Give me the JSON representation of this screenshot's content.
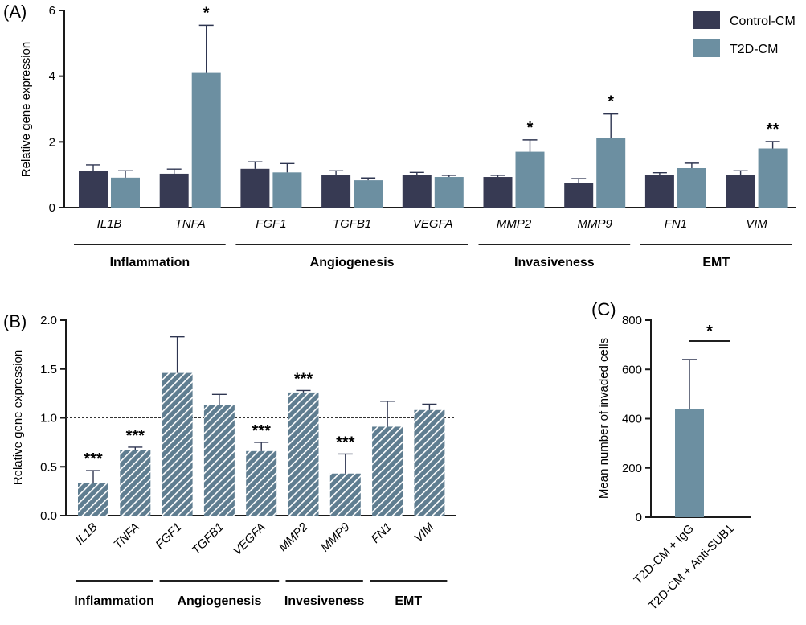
{
  "colors": {
    "control": "#373a53",
    "t2d": "#6c8fa1",
    "stripe": "#ffffff"
  },
  "legend": {
    "control": "Control-CM",
    "t2d": "T2D-CM"
  },
  "panels": {
    "a": "(A)",
    "b": "(B)",
    "c": "(C)"
  },
  "chart_data": [
    {
      "id": "A",
      "type": "bar",
      "ylabel": "Relative gene expression",
      "ylim": [
        0,
        6
      ],
      "yticks": [
        "0",
        "2",
        "4",
        "6"
      ],
      "categories": [
        "IL1B",
        "TNFA",
        "FGF1",
        "TGFB1",
        "VEGFA",
        "MMP2",
        "MMP9",
        "FN1",
        "VIM"
      ],
      "series": [
        {
          "name": "Control-CM",
          "values": [
            1.12,
            1.03,
            1.18,
            1.0,
            0.99,
            0.93,
            0.74,
            0.98,
            1.0
          ],
          "errors": [
            0.18,
            0.14,
            0.21,
            0.12,
            0.08,
            0.05,
            0.14,
            0.08,
            0.12
          ]
        },
        {
          "name": "T2D-CM",
          "values": [
            0.91,
            4.1,
            1.07,
            0.83,
            0.93,
            1.7,
            2.11,
            1.2,
            1.8
          ],
          "errors": [
            0.21,
            1.45,
            0.27,
            0.07,
            0.05,
            0.36,
            0.74,
            0.15,
            0.21
          ]
        }
      ],
      "significance": [
        "",
        "*",
        "",
        "",
        "",
        "*",
        "*",
        "",
        "**"
      ],
      "groups": [
        {
          "label": "Inflammation",
          "span": [
            0,
            1
          ]
        },
        {
          "label": "Angiogenesis",
          "span": [
            2,
            4
          ]
        },
        {
          "label": "Invasiveness",
          "span": [
            5,
            6
          ]
        },
        {
          "label": "EMT",
          "span": [
            7,
            8
          ]
        }
      ]
    },
    {
      "id": "B",
      "type": "bar",
      "ylabel": "Relative gene expression",
      "ylim": [
        0,
        2.0
      ],
      "yticks": [
        "0.0",
        "0.5",
        "1.0",
        "1.5",
        "2.0"
      ],
      "reference_line": 1.0,
      "categories": [
        "IL1B",
        "TNFA",
        "FGF1",
        "TGFB1",
        "VEGFA",
        "MMP2",
        "MMP9",
        "FN1",
        "VIM"
      ],
      "values": [
        0.33,
        0.67,
        1.46,
        1.13,
        0.66,
        1.26,
        0.43,
        0.91,
        1.08
      ],
      "errors": [
        0.13,
        0.03,
        0.37,
        0.11,
        0.09,
        0.02,
        0.2,
        0.26,
        0.06
      ],
      "significance": [
        "***",
        "***",
        "",
        "",
        "***",
        "***",
        "***",
        "",
        ""
      ],
      "groups": [
        {
          "label": "Inflammation",
          "span": [
            0,
            1
          ]
        },
        {
          "label": "Angiogenesis",
          "span": [
            2,
            4
          ]
        },
        {
          "label": "Invesiveness",
          "span": [
            5,
            6
          ]
        },
        {
          "label": "EMT",
          "span": [
            7,
            8
          ]
        }
      ]
    },
    {
      "id": "C",
      "type": "bar",
      "ylabel": "Mean number of invaded cells",
      "ylim": [
        0,
        800
      ],
      "yticks": [
        "0",
        "200",
        "400",
        "600",
        "800"
      ],
      "categories": [
        "T2D-CM + IgG",
        "T2D-CM + Anti-SUB1"
      ],
      "values": [
        440,
        0
      ],
      "errors": [
        200,
        0
      ],
      "significance": "*"
    }
  ]
}
